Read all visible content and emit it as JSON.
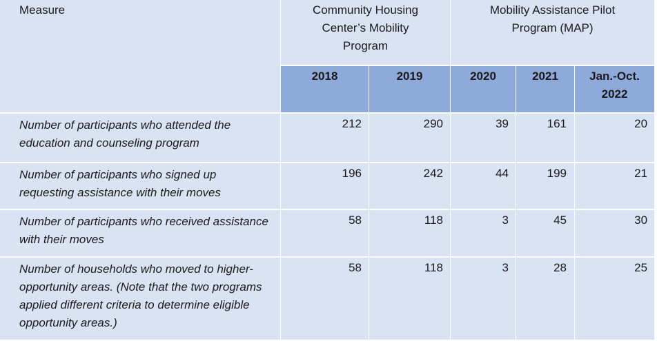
{
  "table": {
    "measure_header": "Measure",
    "program_headers": [
      "Community Housing Center’s Mobility Program",
      "Mobility Assistance Pilot Program (MAP)"
    ],
    "years": [
      "2018",
      "2019",
      "2020",
      "2021",
      "Jan.-Oct. 2022"
    ],
    "rows": [
      {
        "label": "Number of participants who attended the education and counseling program",
        "values": [
          "212",
          "290",
          "39",
          "161",
          "20"
        ]
      },
      {
        "label": "Number of participants who signed up requesting assistance with their moves",
        "values": [
          "196",
          "242",
          "44",
          "199",
          "21"
        ]
      },
      {
        "label": "Number of participants who received assistance with their moves",
        "values": [
          "58",
          "118",
          "3",
          "45",
          "30"
        ]
      },
      {
        "label": "Number of households who moved to higher-opportunity areas. (Note that the two programs applied different criteria to determine eligible opportunity areas.)",
        "values": [
          "58",
          "118",
          "3",
          "28",
          "25"
        ]
      }
    ]
  }
}
